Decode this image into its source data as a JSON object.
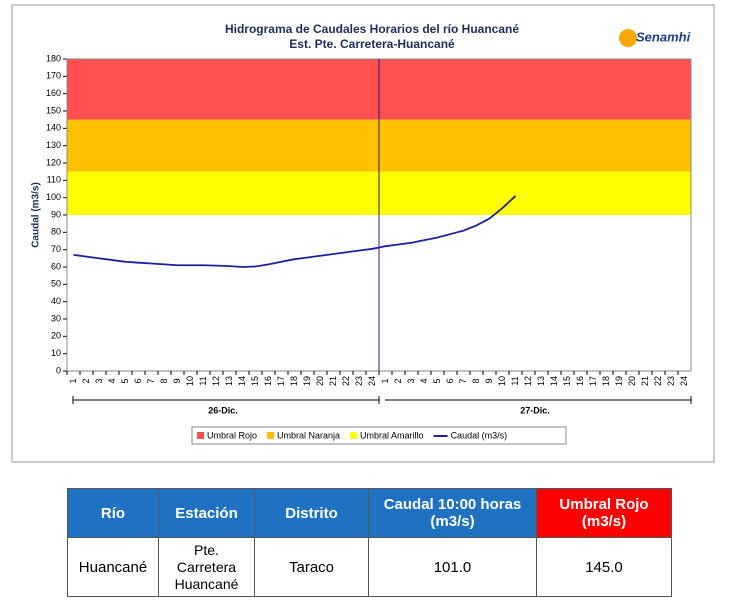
{
  "chart_data": {
    "type": "line",
    "title": "Hidrograma de Caudales Horarios del río Huancané",
    "subtitle": "Est. Pte. Carretera-Huancané",
    "logo": "Senamhi",
    "y_label": "Caudal  (m3/s)",
    "ylim": [
      0,
      180
    ],
    "yticks": [
      0,
      10,
      20,
      30,
      40,
      50,
      60,
      70,
      80,
      90,
      100,
      110,
      120,
      130,
      140,
      150,
      160,
      170,
      180
    ],
    "groups": [
      {
        "label": "26-Dic.",
        "categories": [
          "1",
          "2",
          "3",
          "4",
          "5",
          "6",
          "7",
          "8",
          "9",
          "10",
          "11",
          "12",
          "13",
          "14",
          "15",
          "16",
          "17",
          "18",
          "19",
          "20",
          "21",
          "22",
          "23",
          "24"
        ]
      },
      {
        "label": "27-Dic.",
        "categories": [
          "1",
          "2",
          "3",
          "4",
          "5",
          "6",
          "7",
          "8",
          "9",
          "10",
          "11",
          "12",
          "13",
          "14",
          "15",
          "16",
          "17",
          "18",
          "19",
          "20",
          "21",
          "22",
          "23",
          "24"
        ]
      }
    ],
    "bands": [
      {
        "name": "Umbral Rojo",
        "color": "#ff5050",
        "from": 145,
        "to": 180
      },
      {
        "name": "Umbral Naranja",
        "color": "#ffc000",
        "from": 115,
        "to": 145
      },
      {
        "name": "Umbral Amarillo",
        "color": "#ffff00",
        "from": 90,
        "to": 115
      }
    ],
    "series": [
      {
        "name": "Caudal (m3/s)",
        "color": "#1f1fa0",
        "values": [
          67,
          66,
          65,
          64,
          63,
          62.5,
          62,
          61.5,
          61,
          61,
          61,
          60.8,
          60.5,
          60,
          60.3,
          61.5,
          63,
          64.5,
          65.5,
          66.5,
          67.5,
          68.5,
          69.5,
          70.5,
          72,
          73,
          74,
          75.5,
          77,
          79,
          81,
          84,
          88,
          94,
          101,
          null,
          null,
          null,
          null,
          null,
          null,
          null,
          null,
          null,
          null,
          null,
          null,
          null
        ]
      }
    ]
  },
  "table": {
    "header": [
      "Río",
      "Estación",
      "Distrito",
      "Caudal  10:00 horas (m3/s)",
      "Umbral Rojo (m3/s)"
    ],
    "rows": [
      [
        "Huancané",
        "Pte. Carretera Huancané",
        "Taraco",
        "101.0",
        "145.0"
      ]
    ]
  }
}
